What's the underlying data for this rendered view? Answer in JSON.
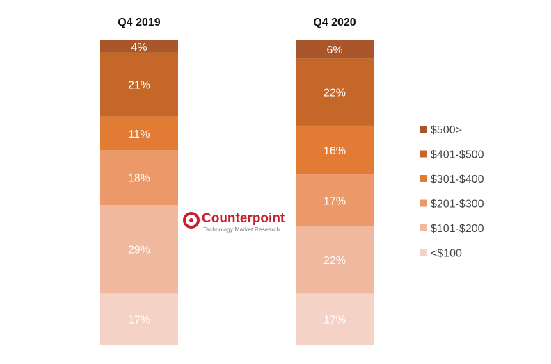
{
  "chart_data": {
    "type": "bar",
    "stacked": true,
    "normalized": true,
    "categories": [
      "Q4 2019",
      "Q4 2020"
    ],
    "series": [
      {
        "name": "<$100",
        "color": "#f4d3c6",
        "values": [
          17,
          17
        ]
      },
      {
        "name": "$101-$200",
        "color": "#f0b89e",
        "values": [
          29,
          22
        ]
      },
      {
        "name": "$201-$300",
        "color": "#eb9968",
        "values": [
          18,
          17
        ]
      },
      {
        "name": "$301-$400",
        "color": "#e27b33",
        "values": [
          11,
          16
        ]
      },
      {
        "name": "$401-$500",
        "color": "#c6672a",
        "values": [
          21,
          22
        ]
      },
      {
        "name": "$500>",
        "color": "#a9572a",
        "values": [
          4,
          6
        ]
      }
    ],
    "value_suffix": "%",
    "ylim": [
      0,
      100
    ],
    "legend_position": "right",
    "grid": false
  },
  "watermark": {
    "brand": "Counterpoint",
    "tagline": "Technology Market Research",
    "color": "#c8202f"
  }
}
